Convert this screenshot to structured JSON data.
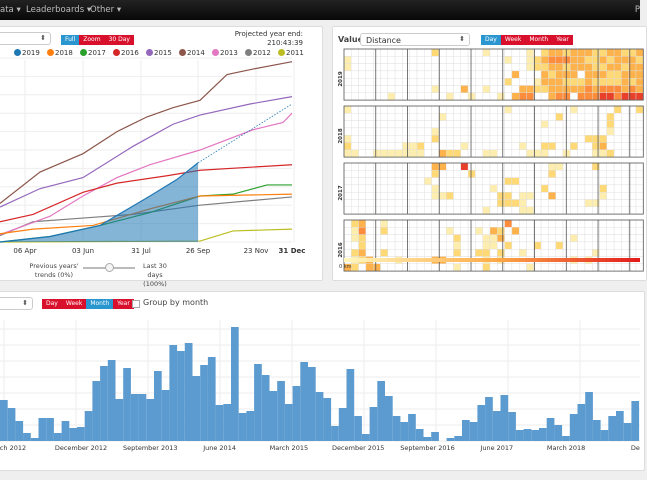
{
  "nav": {
    "items": [
      {
        "label": "ata ▾"
      },
      {
        "label": "Leaderboards ▾"
      },
      {
        "label": "Other ▾"
      }
    ],
    "logo": "P"
  },
  "cumulative": {
    "select_value": "",
    "buttons": [
      {
        "label": "Full",
        "active": true
      },
      {
        "label": "Zoom",
        "active": false
      },
      {
        "label": "30 Day",
        "active": false
      }
    ],
    "projected_label": "Projected year end:",
    "projected_value": "210:43:39",
    "slider": {
      "left_label": "Previous years' trends (0%)",
      "right_label": "Last 30 days (100%)",
      "value_percent": 50
    }
  },
  "chart_data": [
    {
      "type": "line",
      "title": "",
      "xlabel": "",
      "ylabel": "",
      "x_ticks": [
        {
          "label": "06 Apr",
          "day": 96
        },
        {
          "label": "03 Jun",
          "day": 154
        },
        {
          "label": "31 Jul",
          "day": 212
        },
        {
          "label": "26 Sep",
          "day": 269
        },
        {
          "label": "23 Nov",
          "day": 327
        },
        {
          "label": "31 Dec",
          "day": 365,
          "bold": true
        }
      ],
      "grid": true,
      "legend_placement": "top",
      "series": [
        {
          "name": "2019",
          "color": "#1f77b4",
          "area": true,
          "points": [
            [
              71,
              0
            ],
            [
              121,
              0.3
            ],
            [
              171,
              0.9
            ],
            [
              221,
              2.5
            ],
            [
              248,
              3.4
            ],
            [
              269,
              4.3
            ]
          ],
          "projection": [
            [
              269,
              4.3
            ],
            [
              363,
              7.5
            ]
          ]
        },
        {
          "name": "2018",
          "color": "#ff7f0e",
          "points": [
            [
              71,
              0.45
            ],
            [
              104,
              0.7
            ],
            [
              164,
              0.9
            ],
            [
              221,
              1.8
            ],
            [
              271,
              2.5
            ],
            [
              363,
              2.6
            ]
          ]
        },
        {
          "name": "2017",
          "color": "#2ca02c",
          "points": [
            [
              71,
              0
            ],
            [
              121,
              0.3
            ],
            [
              171,
              0.9
            ],
            [
              221,
              1.6
            ],
            [
              271,
              2.5
            ],
            [
              304,
              2.6
            ],
            [
              338,
              3.1
            ],
            [
              363,
              3.1
            ]
          ]
        },
        {
          "name": "2016",
          "color": "#d62728",
          "points": [
            [
              71,
              1.1
            ],
            [
              104,
              1.5
            ],
            [
              154,
              2.7
            ],
            [
              188,
              3.2
            ],
            [
              238,
              3.6
            ],
            [
              271,
              3.9
            ],
            [
              363,
              4.2
            ]
          ]
        },
        {
          "name": "2015",
          "color": "#9467bd",
          "points": [
            [
              71,
              1.9
            ],
            [
              111,
              2.9
            ],
            [
              154,
              3.5
            ],
            [
              204,
              5.2
            ],
            [
              244,
              6.4
            ],
            [
              271,
              6.9
            ],
            [
              321,
              7.5
            ],
            [
              363,
              7.9
            ]
          ]
        },
        {
          "name": "2014",
          "color": "#8c564b",
          "points": [
            [
              71,
              2.1
            ],
            [
              111,
              3.8
            ],
            [
              154,
              4.8
            ],
            [
              188,
              6.0
            ],
            [
              218,
              6.8
            ],
            [
              244,
              7.3
            ],
            [
              271,
              7.7
            ],
            [
              298,
              9.1
            ],
            [
              324,
              9.4
            ],
            [
              363,
              9.8
            ]
          ]
        },
        {
          "name": "2013",
          "color": "#e377c2",
          "points": [
            [
              71,
              0.4
            ],
            [
              121,
              1.4
            ],
            [
              154,
              2.5
            ],
            [
              188,
              3.5
            ],
            [
              221,
              4.2
            ],
            [
              271,
              5.0
            ],
            [
              324,
              6.1
            ],
            [
              354,
              6.5
            ],
            [
              363,
              7.0
            ]
          ]
        },
        {
          "name": "2012",
          "color": "#7f7f7f",
          "points": [
            [
              71,
              0.35
            ],
            [
              104,
              1.1
            ],
            [
              154,
              1.3
            ],
            [
              204,
              1.5
            ],
            [
              271,
              2.0
            ],
            [
              363,
              2.45
            ]
          ]
        },
        {
          "name": "2011",
          "color": "#bcbd22",
          "points": [
            [
              71,
              0
            ],
            [
              271,
              0.05
            ],
            [
              304,
              0.6
            ],
            [
              363,
              0.7
            ]
          ]
        }
      ],
      "ylim": [
        0,
        10
      ]
    },
    {
      "type": "heatmap",
      "title": "",
      "legend_min_label": "0 km",
      "levels_colors": [
        "#ffffff",
        "#fdeeb0",
        "#fed976",
        "#feb24c",
        "#fd8d3c",
        "#e8402a"
      ],
      "years": [
        {
          "label": "2019",
          "rows": [
            "0000000000002000000100000102332333223322330",
            "1000000000000000000000100123444332232333220",
            "1000000000000000000000000122332333223323330",
            "0000000000000000000000030003233303332233320",
            "0000000000000000000000200013332223222232320",
            "0000000000001000300100003322333334344434330",
            "0000001000000010010001034400344044455455530"
          ]
        },
        {
          "label": "2018",
          "rows": [
            "1000000000000000000000100000000100000200200",
            "0000000000000100000000000000020000002000000",
            "0000000000000000000000000001000000002000000",
            "0000000000001000000000000000000000001000000",
            "1000000000002000000000000000000002220000000",
            "2000000011200000100000001002200200230000000",
            "1100111111100322000110000111001000112000000"
          ]
        },
        {
          "label": "2017",
          "rows": [
            "0000000000003300500000000000110000200000000",
            "0000000000002000020000000000200000000000000",
            "0000000000010000000000220000000000000000000",
            "0000000000001000000010000002000000020000000",
            "0000000000001120000002201100300000010000000",
            "0000000000000000000002221000000001100000000",
            "0000000000000000000100001100000000000000000"
          ]
        },
        {
          "label": "2016",
          "rows": [
            "0230010000000000000000400000000000000000000",
            "0140020000000010001032030000000000000000000",
            "0120000000000002000113000000000100000000000",
            "0020000000000001000110200020020000000000000",
            "0230020000000002002202001000000000100000000",
            "0123000100003300000101000000000101000000000",
            "3203300000000001000200000100000000000000000"
          ]
        }
      ]
    },
    {
      "type": "bar",
      "title": "",
      "xlabel": "",
      "ylabel": "",
      "color": "#5b9bcf",
      "x_ticks": [
        {
          "label": "rch 2012",
          "index": 1
        },
        {
          "label": "December 2012",
          "index": 10
        },
        {
          "label": "September 2013",
          "index": 19
        },
        {
          "label": "June 2014",
          "index": 28
        },
        {
          "label": "March 2015",
          "index": 37
        },
        {
          "label": "December 2015",
          "index": 46
        },
        {
          "label": "September 2016",
          "index": 55
        },
        {
          "label": "June 2017",
          "index": 64
        },
        {
          "label": "March 2018",
          "index": 73
        },
        {
          "label": "De",
          "index": 82
        }
      ],
      "values": [
        41,
        33,
        20,
        8,
        3,
        23,
        23,
        8,
        20,
        13,
        14,
        30,
        60,
        75,
        81,
        42,
        73,
        47,
        47,
        42,
        70,
        51,
        96,
        90,
        98,
        65,
        76,
        84,
        36,
        37,
        114,
        28,
        30,
        77,
        66,
        50,
        60,
        37,
        55,
        79,
        74,
        49,
        43,
        15,
        33,
        72,
        25,
        7,
        34,
        60,
        45,
        25,
        19,
        27,
        12,
        4,
        9,
        0,
        3,
        5,
        21,
        19,
        36,
        44,
        30,
        46,
        29,
        11,
        12,
        11,
        13,
        23,
        16,
        5,
        27,
        37,
        49,
        21,
        11,
        25,
        30,
        18,
        40
      ],
      "grid": true
    }
  ],
  "heatmap_panel": {
    "value_label": "Value:",
    "select_value": "Distance",
    "buttons": [
      {
        "label": "Day",
        "active": true
      },
      {
        "label": "Week",
        "active": false
      },
      {
        "label": "Month",
        "active": false
      },
      {
        "label": "Year",
        "active": false
      }
    ]
  },
  "bar_panel": {
    "select_value": "",
    "buttons": [
      {
        "label": "Day",
        "active": false
      },
      {
        "label": "Week",
        "active": false
      },
      {
        "label": "Month",
        "active": true
      },
      {
        "label": "Year",
        "active": false
      }
    ],
    "group_label": "Group by month",
    "group_checked": false
  }
}
